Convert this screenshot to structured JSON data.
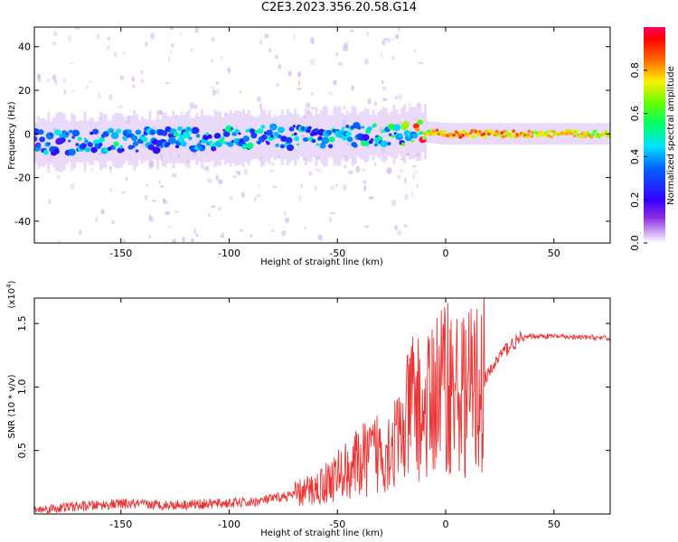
{
  "title": "C2E3.2023.356.20.58.G14",
  "chart_data": [
    {
      "type": "heatmap",
      "title": "C2E3.2023.356.20.58.G14",
      "xlabel": "Height of straight line (km)",
      "ylabel": "Frequency (Hz)",
      "xlim": [
        -190,
        76
      ],
      "ylim": [
        -50,
        49
      ],
      "xticks": [
        -150,
        -100,
        -50,
        0,
        50
      ],
      "yticks": [
        -40,
        -20,
        0,
        20,
        40
      ],
      "colorbar": {
        "label": "Normalized spectral amplitude",
        "range": [
          0.0,
          1.0
        ],
        "ticks": [
          "0.0",
          "0.2",
          "0.4",
          "0.6",
          "0.8"
        ],
        "colormap": "rainbow"
      },
      "band": {
        "x": [
          -190,
          -150,
          -100,
          -50,
          -20,
          -10,
          0,
          20,
          50,
          76
        ],
        "center_freq": [
          -4,
          -3,
          -2,
          -1,
          0,
          1,
          0,
          0,
          0,
          0
        ],
        "amplitude": [
          0.25,
          0.3,
          0.3,
          0.3,
          0.35,
          0.7,
          0.8,
          0.8,
          0.75,
          0.7
        ]
      }
    },
    {
      "type": "line",
      "xlabel": "Height of straight line (km)",
      "ylabel": "SNR (10 * v/v)",
      "y_scale_label": "(x10^4)",
      "y_scale_base": "(x10",
      "y_scale_exp": "4",
      "y_scale_close": ")",
      "xlim": [
        -190,
        76
      ],
      "ylim": [
        0,
        1.7
      ],
      "xticks": [
        -150,
        -100,
        -50,
        0,
        50
      ],
      "yticks": [
        "0.5",
        "1.0",
        "1.5"
      ],
      "color": "#ee3333",
      "series": [
        {
          "x": [
            -190,
            -170,
            -150,
            -130,
            -110,
            -90,
            -70,
            -60,
            -50,
            -40,
            -30,
            -20,
            -15,
            -10,
            -5,
            0,
            5,
            10,
            15,
            20,
            25,
            30,
            35,
            40,
            50,
            60,
            70,
            76
          ],
          "y": [
            0.03,
            0.06,
            0.08,
            0.07,
            0.08,
            0.09,
            0.15,
            0.2,
            0.3,
            0.4,
            0.5,
            0.6,
            0.9,
            0.75,
            0.95,
            1.05,
            0.95,
            0.95,
            1.0,
            1.1,
            1.25,
            1.33,
            1.38,
            1.4,
            1.4,
            1.39,
            1.39,
            1.38
          ]
        }
      ]
    }
  ]
}
